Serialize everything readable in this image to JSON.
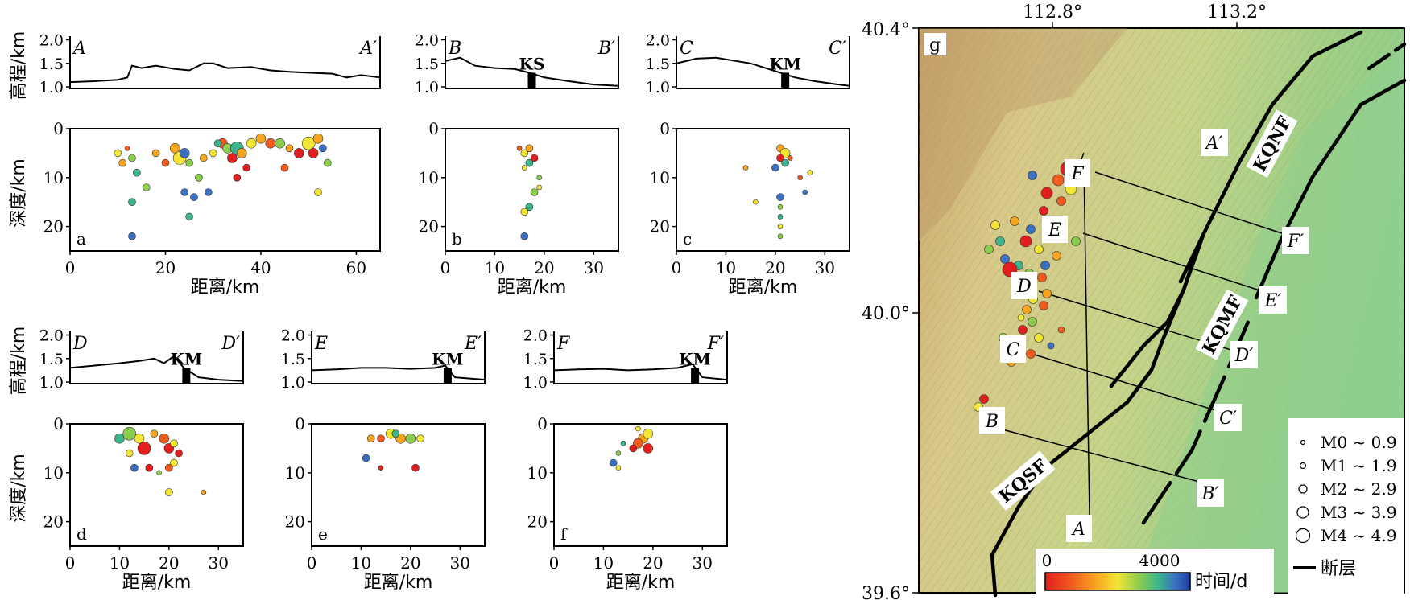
{
  "colorbar": {
    "min": 0,
    "max": 5000,
    "tick0": "0",
    "tick1": "4000",
    "label": "时间/d",
    "stops": [
      "#e21e1e",
      "#f25a1e",
      "#f7a51f",
      "#f2e533",
      "#8ccc4e",
      "#3cb48c",
      "#3a6fc2",
      "#1f3b9e"
    ]
  },
  "legend": {
    "items": [
      "M0 ~ 0.9",
      "M1 ~ 1.9",
      "M2 ~ 2.9",
      "M3 ~ 3.9",
      "M4 ~ 4.9"
    ],
    "fault_label": "断层"
  },
  "map": {
    "panel_label": "g",
    "lon_ticks": [
      "112.8°",
      "113.2°"
    ],
    "lat_ticks": [
      "40.4°",
      "40.0°",
      "39.6°"
    ],
    "fault_labels": [
      "KQNF",
      "KQMF",
      "KQSF"
    ],
    "profile_labels": [
      "A",
      "A′",
      "B",
      "B′",
      "C",
      "C′",
      "D",
      "D′",
      "E",
      "E′",
      "F",
      "F′"
    ]
  },
  "chart_data": [
    {
      "type": "scatter",
      "panel": "a",
      "profile_start": "A",
      "profile_end": "A′",
      "marker": "",
      "xlabel": "距离/km",
      "ylabel_elev": "高程/km",
      "ylabel_depth": "深度/km",
      "xlim": [
        0,
        65
      ],
      "xticks": [
        0,
        20,
        40,
        60
      ],
      "ylim_depth": [
        0,
        25
      ],
      "yticks_depth": [
        0,
        10,
        20
      ],
      "ylim_elev": [
        1.0,
        2.0
      ],
      "yticks_elev": [
        "2.0",
        "1.5",
        "1.0"
      ],
      "elevation": [
        [
          0,
          1.1
        ],
        [
          5,
          1.12
        ],
        [
          10,
          1.15
        ],
        [
          12,
          1.2
        ],
        [
          13,
          1.45
        ],
        [
          15,
          1.4
        ],
        [
          18,
          1.45
        ],
        [
          22,
          1.38
        ],
        [
          25,
          1.35
        ],
        [
          28,
          1.5
        ],
        [
          30,
          1.5
        ],
        [
          33,
          1.4
        ],
        [
          38,
          1.42
        ],
        [
          42,
          1.35
        ],
        [
          46,
          1.32
        ],
        [
          50,
          1.3
        ],
        [
          55,
          1.28
        ],
        [
          58,
          1.2
        ],
        [
          61,
          1.25
        ],
        [
          65,
          1.2
        ]
      ],
      "points": [
        [
          10,
          5,
          3,
          1
        ],
        [
          11,
          7,
          2,
          1
        ],
        [
          12,
          4,
          1,
          0
        ],
        [
          13,
          6,
          4,
          1
        ],
        [
          14,
          9,
          5,
          1
        ],
        [
          13,
          15,
          5,
          1
        ],
        [
          13,
          22,
          6,
          1
        ],
        [
          16,
          12,
          4,
          1
        ],
        [
          18,
          5,
          2,
          1
        ],
        [
          20,
          7,
          1,
          1
        ],
        [
          22,
          4,
          2,
          2
        ],
        [
          23,
          6,
          3,
          3
        ],
        [
          24,
          5,
          6,
          2
        ],
        [
          25,
          7,
          4,
          1
        ],
        [
          24,
          13,
          6,
          1
        ],
        [
          26,
          14,
          6,
          1
        ],
        [
          25,
          18,
          5,
          1
        ],
        [
          27,
          10,
          4,
          1
        ],
        [
          28,
          6,
          2,
          1
        ],
        [
          30,
          5,
          3,
          1
        ],
        [
          32,
          3,
          1,
          2
        ],
        [
          33,
          4,
          4,
          2
        ],
        [
          34,
          6,
          0,
          2
        ],
        [
          35,
          4,
          5,
          3
        ],
        [
          36,
          5,
          2,
          2
        ],
        [
          37,
          8,
          0,
          1
        ],
        [
          38,
          3,
          3,
          2
        ],
        [
          40,
          2,
          2,
          2
        ],
        [
          42,
          3,
          1,
          2
        ],
        [
          44,
          3,
          4,
          2
        ],
        [
          46,
          4,
          2,
          1
        ],
        [
          45,
          8,
          1,
          1
        ],
        [
          48,
          5,
          0,
          2
        ],
        [
          50,
          3,
          3,
          3
        ],
        [
          51,
          5,
          0,
          2
        ],
        [
          52,
          2,
          2,
          2
        ],
        [
          53,
          4,
          6,
          1
        ],
        [
          54,
          7,
          4,
          1
        ],
        [
          52,
          13,
          3,
          1
        ],
        [
          29,
          13,
          6,
          1
        ],
        [
          31,
          3,
          5,
          1
        ],
        [
          35,
          10,
          0,
          1
        ]
      ]
    },
    {
      "type": "scatter",
      "panel": "b",
      "profile_start": "B",
      "profile_end": "B′",
      "marker": "KS",
      "xlabel": "距离/km",
      "xlim": [
        0,
        35
      ],
      "xticks": [
        0,
        10,
        20,
        30
      ],
      "ylim_depth": [
        0,
        25
      ],
      "yticks_depth": [
        0,
        10,
        20
      ],
      "yticks_elev": [
        "2.0",
        "1.5",
        "1.0"
      ],
      "marker_at": 17.5,
      "elevation": [
        [
          0,
          1.55
        ],
        [
          3,
          1.62
        ],
        [
          6,
          1.45
        ],
        [
          10,
          1.4
        ],
        [
          14,
          1.38
        ],
        [
          17,
          1.3
        ],
        [
          20,
          1.2
        ],
        [
          25,
          1.12
        ],
        [
          30,
          1.05
        ],
        [
          35,
          1.02
        ]
      ],
      "points": [
        [
          15,
          4,
          1,
          0
        ],
        [
          16,
          5,
          3,
          1
        ],
        [
          17,
          4,
          2,
          1
        ],
        [
          18,
          6,
          0,
          1
        ],
        [
          17,
          7,
          5,
          1
        ],
        [
          16,
          8,
          3,
          0
        ],
        [
          19,
          10,
          4,
          0
        ],
        [
          19,
          12,
          3,
          0
        ],
        [
          18,
          13,
          4,
          1
        ],
        [
          17,
          16,
          5,
          1
        ],
        [
          16,
          17,
          3,
          1
        ],
        [
          16,
          22,
          6,
          1
        ]
      ]
    },
    {
      "type": "scatter",
      "panel": "c",
      "profile_start": "C",
      "profile_end": "C′",
      "marker": "KM",
      "xlabel": "距离/km",
      "xlim": [
        0,
        35
      ],
      "xticks": [
        0,
        10,
        20,
        30
      ],
      "ylim_depth": [
        0,
        25
      ],
      "yticks_depth": [
        0,
        10,
        20
      ],
      "yticks_elev": [
        "2.0",
        "1.5",
        "1.0"
      ],
      "marker_at": 22,
      "elevation": [
        [
          0,
          1.5
        ],
        [
          4,
          1.6
        ],
        [
          8,
          1.62
        ],
        [
          12,
          1.55
        ],
        [
          15,
          1.5
        ],
        [
          18,
          1.4
        ],
        [
          21,
          1.3
        ],
        [
          24,
          1.2
        ],
        [
          28,
          1.12
        ],
        [
          32,
          1.06
        ],
        [
          35,
          1.02
        ]
      ],
      "points": [
        [
          21,
          4,
          2,
          1
        ],
        [
          22,
          5,
          3,
          2
        ],
        [
          21,
          6,
          0,
          1
        ],
        [
          22,
          7,
          5,
          1
        ],
        [
          20,
          8,
          6,
          1
        ],
        [
          23,
          6,
          1,
          0
        ],
        [
          14,
          8,
          2,
          0
        ],
        [
          25,
          10,
          1,
          0
        ],
        [
          27,
          9,
          3,
          0
        ],
        [
          26,
          13,
          6,
          0
        ],
        [
          21,
          14,
          6,
          1
        ],
        [
          21,
          16,
          4,
          0
        ],
        [
          21,
          18,
          5,
          0
        ],
        [
          21,
          20,
          3,
          0
        ],
        [
          21,
          22,
          4,
          0
        ],
        [
          16,
          15,
          3,
          0
        ]
      ]
    },
    {
      "type": "scatter",
      "panel": "d",
      "profile_start": "D",
      "profile_end": "D′",
      "marker": "KM",
      "xlabel": "距离/km",
      "xlim": [
        0,
        35
      ],
      "xticks": [
        0,
        10,
        20,
        30
      ],
      "ylim_depth": [
        0,
        25
      ],
      "yticks_depth": [
        0,
        10,
        20
      ],
      "yticks_elev": [
        "2.0",
        "1.5",
        "1.0"
      ],
      "marker_at": 23.5,
      "elevation": [
        [
          0,
          1.3
        ],
        [
          5,
          1.35
        ],
        [
          10,
          1.4
        ],
        [
          14,
          1.45
        ],
        [
          17,
          1.5
        ],
        [
          19,
          1.4
        ],
        [
          21,
          1.55
        ],
        [
          23,
          1.3
        ],
        [
          26,
          1.1
        ],
        [
          30,
          1.05
        ],
        [
          35,
          1.02
        ]
      ],
      "points": [
        [
          10,
          3,
          5,
          2
        ],
        [
          12,
          2,
          4,
          3
        ],
        [
          14,
          3,
          3,
          2
        ],
        [
          15,
          5,
          0,
          3
        ],
        [
          17,
          2,
          2,
          1
        ],
        [
          19,
          3,
          1,
          2
        ],
        [
          20,
          5,
          0,
          2
        ],
        [
          21,
          4,
          3,
          1
        ],
        [
          22,
          6,
          0,
          1
        ],
        [
          21,
          8,
          3,
          1
        ],
        [
          20,
          9,
          1,
          1
        ],
        [
          12,
          6,
          3,
          1
        ],
        [
          13,
          9,
          6,
          1
        ],
        [
          16,
          9,
          0,
          1
        ],
        [
          18,
          10,
          4,
          0
        ],
        [
          20,
          14,
          3,
          1
        ],
        [
          27,
          14,
          2,
          0
        ]
      ]
    },
    {
      "type": "scatter",
      "panel": "e",
      "profile_start": "E",
      "profile_end": "E′",
      "marker": "KM",
      "xlabel": "距离/km",
      "xlim": [
        0,
        35
      ],
      "xticks": [
        0,
        10,
        20,
        30
      ],
      "ylim_depth": [
        0,
        25
      ],
      "yticks_depth": [
        0,
        10,
        20
      ],
      "yticks_elev": [
        "2.0",
        "1.5",
        "1.0"
      ],
      "marker_at": 27.5,
      "elevation": [
        [
          0,
          1.25
        ],
        [
          5,
          1.27
        ],
        [
          10,
          1.3
        ],
        [
          15,
          1.3
        ],
        [
          20,
          1.28
        ],
        [
          25,
          1.3
        ],
        [
          27,
          1.35
        ],
        [
          29,
          1.1
        ],
        [
          35,
          1.05
        ]
      ],
      "points": [
        [
          12,
          3,
          2,
          1
        ],
        [
          14,
          3,
          1,
          1
        ],
        [
          16,
          2,
          3,
          2
        ],
        [
          18,
          3,
          2,
          2
        ],
        [
          20,
          3,
          4,
          2
        ],
        [
          22,
          3,
          3,
          1
        ],
        [
          11,
          7,
          6,
          1
        ],
        [
          14,
          9,
          0,
          0
        ],
        [
          21,
          9,
          0,
          1
        ],
        [
          17,
          2,
          5,
          1
        ]
      ]
    },
    {
      "type": "scatter",
      "panel": "f",
      "profile_start": "F",
      "profile_end": "F′",
      "marker": "KM",
      "xlabel": "距离/km",
      "xlim": [
        0,
        35
      ],
      "xticks": [
        0,
        10,
        20,
        30
      ],
      "ylim_depth": [
        0,
        25
      ],
      "yticks_depth": [
        0,
        10,
        20
      ],
      "yticks_elev": [
        "2.0",
        "1.5",
        "1.0"
      ],
      "marker_at": 28.5,
      "elevation": [
        [
          0,
          1.25
        ],
        [
          5,
          1.27
        ],
        [
          10,
          1.28
        ],
        [
          15,
          1.25
        ],
        [
          20,
          1.27
        ],
        [
          25,
          1.3
        ],
        [
          28,
          1.38
        ],
        [
          30,
          1.1
        ],
        [
          35,
          1.05
        ]
      ],
      "points": [
        [
          17,
          1,
          3,
          0
        ],
        [
          18,
          3,
          2,
          2
        ],
        [
          19,
          2,
          3,
          2
        ],
        [
          17,
          4,
          1,
          2
        ],
        [
          19,
          5,
          0,
          2
        ],
        [
          14,
          4,
          5,
          0
        ],
        [
          13,
          6,
          4,
          0
        ],
        [
          12,
          8,
          6,
          1
        ],
        [
          13,
          9,
          3,
          0
        ],
        [
          16,
          5,
          0,
          1
        ]
      ]
    }
  ],
  "map_events": [
    [
      1326,
      210,
      0,
      3
    ],
    [
      1314,
      224,
      1,
      2
    ],
    [
      1300,
      240,
      0,
      2
    ],
    [
      1330,
      235,
      3,
      2
    ],
    [
      1318,
      250,
      1,
      1
    ],
    [
      1282,
      218,
      6,
      1
    ],
    [
      1296,
      262,
      0,
      1
    ],
    [
      1260,
      275,
      2,
      1
    ],
    [
      1280,
      285,
      6,
      1
    ],
    [
      1302,
      290,
      1,
      2
    ],
    [
      1274,
      300,
      0,
      2
    ],
    [
      1290,
      310,
      3,
      1
    ],
    [
      1312,
      318,
      2,
      1
    ],
    [
      1248,
      322,
      6,
      1
    ],
    [
      1265,
      330,
      5,
      1
    ],
    [
      1254,
      335,
      0,
      3
    ],
    [
      1278,
      340,
      4,
      1
    ],
    [
      1294,
      345,
      1,
      1
    ],
    [
      1270,
      360,
      0,
      1
    ],
    [
      1283,
      372,
      3,
      1
    ],
    [
      1296,
      380,
      1,
      1
    ],
    [
      1275,
      385,
      2,
      1
    ],
    [
      1282,
      400,
      4,
      1
    ],
    [
      1270,
      410,
      0,
      1
    ],
    [
      1290,
      420,
      3,
      1
    ],
    [
      1262,
      430,
      6,
      1
    ],
    [
      1280,
      440,
      1,
      1
    ],
    [
      1256,
      450,
      2,
      1
    ],
    [
      1222,
      496,
      0,
      1
    ],
    [
      1215,
      506,
      3,
      1
    ],
    [
      1318,
      410,
      1,
      0
    ],
    [
      1242,
      300,
      5,
      1
    ],
    [
      1228,
      310,
      4,
      1
    ],
    [
      1236,
      280,
      3,
      1
    ],
    [
      1300,
      365,
      2,
      1
    ],
    [
      1268,
      395,
      3,
      0
    ],
    [
      1246,
      420,
      4,
      1
    ],
    [
      1305,
      430,
      6,
      0
    ],
    [
      1224,
      520,
      2,
      1
    ],
    [
      1316,
      280,
      0,
      1
    ],
    [
      1336,
      300,
      4,
      1
    ],
    [
      1298,
      330,
      6,
      1
    ]
  ]
}
